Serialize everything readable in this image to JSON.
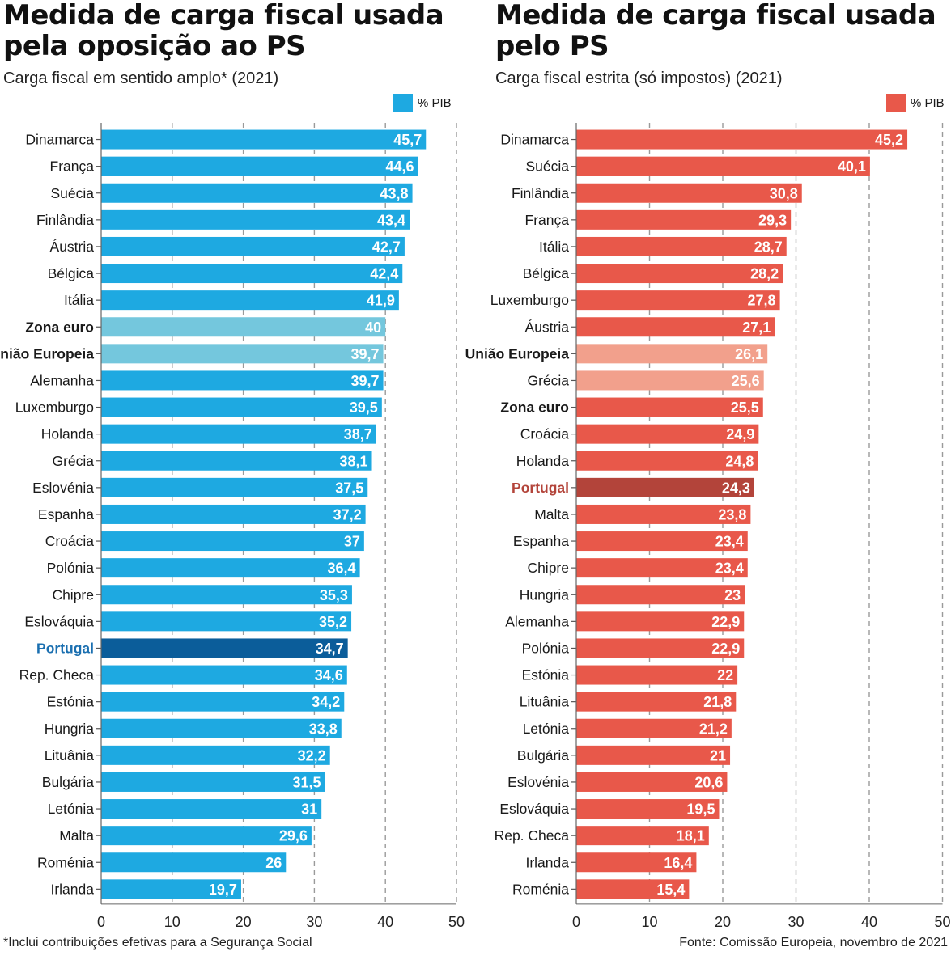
{
  "left": {
    "title": "Medida de carga fiscal usada pela oposição ao PS",
    "subtitle": "Carga fiscal em sentido amplo* (2021)",
    "legend": "% PIB",
    "footnote": "*Inclui contribuições efetivas para a Segurança Social",
    "colors": {
      "bar": "#1ea9e1",
      "aggregate": "#74c7dd",
      "highlight": "#0b5d9a",
      "highlight_label": "#1a6fb0"
    },
    "chart_data": {
      "type": "bar",
      "orientation": "horizontal",
      "title": "Medida de carga fiscal usada pela oposição ao PS",
      "subtitle": "Carga fiscal em sentido amplo* (2021)",
      "unit": "% PIB",
      "xlim": [
        0,
        50
      ],
      "ticks": [
        0,
        10,
        20,
        30,
        40,
        50
      ],
      "grid": "vertical dashed",
      "categories": [
        "Dinamarca",
        "França",
        "Suécia",
        "Finlândia",
        "Áustria",
        "Bélgica",
        "Itália",
        "Zona euro",
        "União Europeia",
        "Alemanha",
        "Luxemburgo",
        "Holanda",
        "Grécia",
        "Eslovénia",
        "Espanha",
        "Croácia",
        "Polónia",
        "Chipre",
        "Eslováquia",
        "Portugal",
        "Rep. Checa",
        "Estónia",
        "Hungria",
        "Lituânia",
        "Bulgária",
        "Letónia",
        "Malta",
        "Roménia",
        "Irlanda"
      ],
      "values": [
        45.7,
        44.6,
        43.8,
        43.4,
        42.7,
        42.4,
        41.9,
        40,
        39.7,
        39.7,
        39.5,
        38.7,
        38.1,
        37.5,
        37.2,
        37,
        36.4,
        35.3,
        35.2,
        34.7,
        34.6,
        34.2,
        33.8,
        32.2,
        31.5,
        31,
        29.6,
        26,
        19.7
      ],
      "value_labels": [
        "45,7",
        "44,6",
        "43,8",
        "43,4",
        "42,7",
        "42,4",
        "41,9",
        "40",
        "39,7",
        "39,7",
        "39,5",
        "38,7",
        "38,1",
        "37,5",
        "37,2",
        "37",
        "36,4",
        "35,3",
        "35,2",
        "34,7",
        "34,6",
        "34,2",
        "33,8",
        "32,2",
        "31,5",
        "31",
        "29,6",
        "26",
        "19,7"
      ],
      "aggregates": [
        "Zona euro",
        "União Europeia"
      ],
      "highlight": "Portugal"
    }
  },
  "right": {
    "title": "Medida de carga fiscal usada pelo PS",
    "subtitle": "Carga fiscal estrita (só impostos) (2021)",
    "legend": "% PIB",
    "footnote": "Fonte: Comissão Europeia, novembro de 2021",
    "colors": {
      "bar": "#e8584a",
      "aggregate": "#f2a08c",
      "highlight": "#b3443a",
      "highlight_label": "#b3443a"
    },
    "chart_data": {
      "type": "bar",
      "orientation": "horizontal",
      "title": "Medida de carga fiscal usada pelo PS",
      "subtitle": "Carga fiscal estrita (só impostos) (2021)",
      "unit": "% PIB",
      "xlim": [
        0,
        50
      ],
      "ticks": [
        0,
        10,
        20,
        30,
        40,
        50
      ],
      "grid": "vertical dashed",
      "categories": [
        "Dinamarca",
        "Suécia",
        "Finlândia",
        "França",
        "Itália",
        "Bélgica",
        "Luxemburgo",
        "Áustria",
        "União Europeia",
        "Grécia",
        "Zona euro",
        "Croácia",
        "Holanda",
        "Portugal",
        "Malta",
        "Espanha",
        "Chipre",
        "Hungria",
        "Alemanha",
        "Polónia",
        "Estónia",
        "Lituânia",
        "Letónia",
        "Bulgária",
        "Eslovénia",
        "Eslováquia",
        "Rep. Checa",
        "Irlanda",
        "Roménia"
      ],
      "values": [
        45.2,
        40.1,
        30.8,
        29.3,
        28.7,
        28.2,
        27.8,
        27.1,
        26.1,
        25.6,
        25.5,
        24.9,
        24.8,
        24.3,
        23.8,
        23.4,
        23.4,
        23,
        22.9,
        22.9,
        22,
        21.8,
        21.2,
        21,
        20.6,
        19.5,
        18.1,
        16.4,
        15.4
      ],
      "value_labels": [
        "45,2",
        "40,1",
        "30,8",
        "29,3",
        "28,7",
        "28,2",
        "27,8",
        "27,1",
        "26,1",
        "25,6",
        "25,5",
        "24,9",
        "24,8",
        "24,3",
        "23,8",
        "23,4",
        "23,4",
        "23",
        "22,9",
        "22,9",
        "22",
        "21,8",
        "21,2",
        "21",
        "20,6",
        "19,5",
        "18,1",
        "16,4",
        "15,4"
      ],
      "aggregates": [
        "União Europeia",
        "Zona euro"
      ],
      "lighter": [
        "União Europeia",
        "Grécia"
      ],
      "highlight": "Portugal"
    }
  }
}
